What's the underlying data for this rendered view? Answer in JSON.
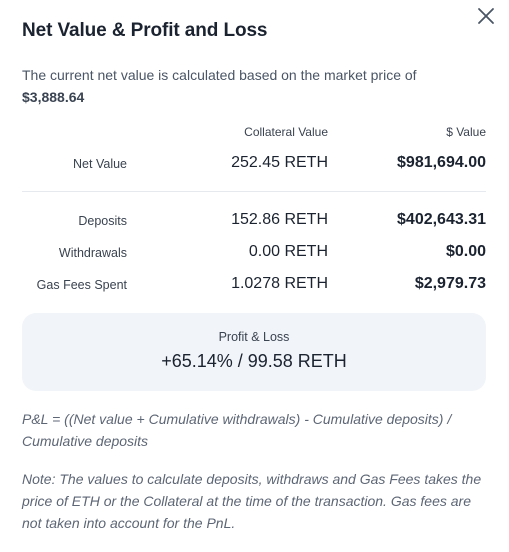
{
  "modal": {
    "title": "Net Value & Profit and Loss",
    "close_icon": "close-icon"
  },
  "description": {
    "text": "The current net value is calculated based on the market price of",
    "price": "$3,888.64"
  },
  "table": {
    "headers": {
      "collateral": "Collateral Value",
      "dollar": "$ Value"
    },
    "net_value": {
      "label": "Net Value",
      "collateral": "252.45 RETH",
      "dollar": "$981,694.00"
    },
    "rows": [
      {
        "label": "Deposits",
        "collateral": "152.86 RETH",
        "dollar": "$402,643.31"
      },
      {
        "label": "Withdrawals",
        "collateral": "0.00 RETH",
        "dollar": "$0.00"
      },
      {
        "label": "Gas Fees Spent",
        "collateral": "1.0278 RETH",
        "dollar": "$2,979.73"
      }
    ]
  },
  "pnl": {
    "title": "Profit & Loss",
    "value": "+65.14% / 99.58 RETH"
  },
  "formula": "P&L = ((Net value + Cumulative withdrawals) - Cumulative deposits) / Cumulative deposits",
  "note": "Note: The values to calculate deposits, withdraws and Gas Fees takes the price of ETH or the Collateral at the time of the transaction. Gas fees are not taken into account for the PnL."
}
